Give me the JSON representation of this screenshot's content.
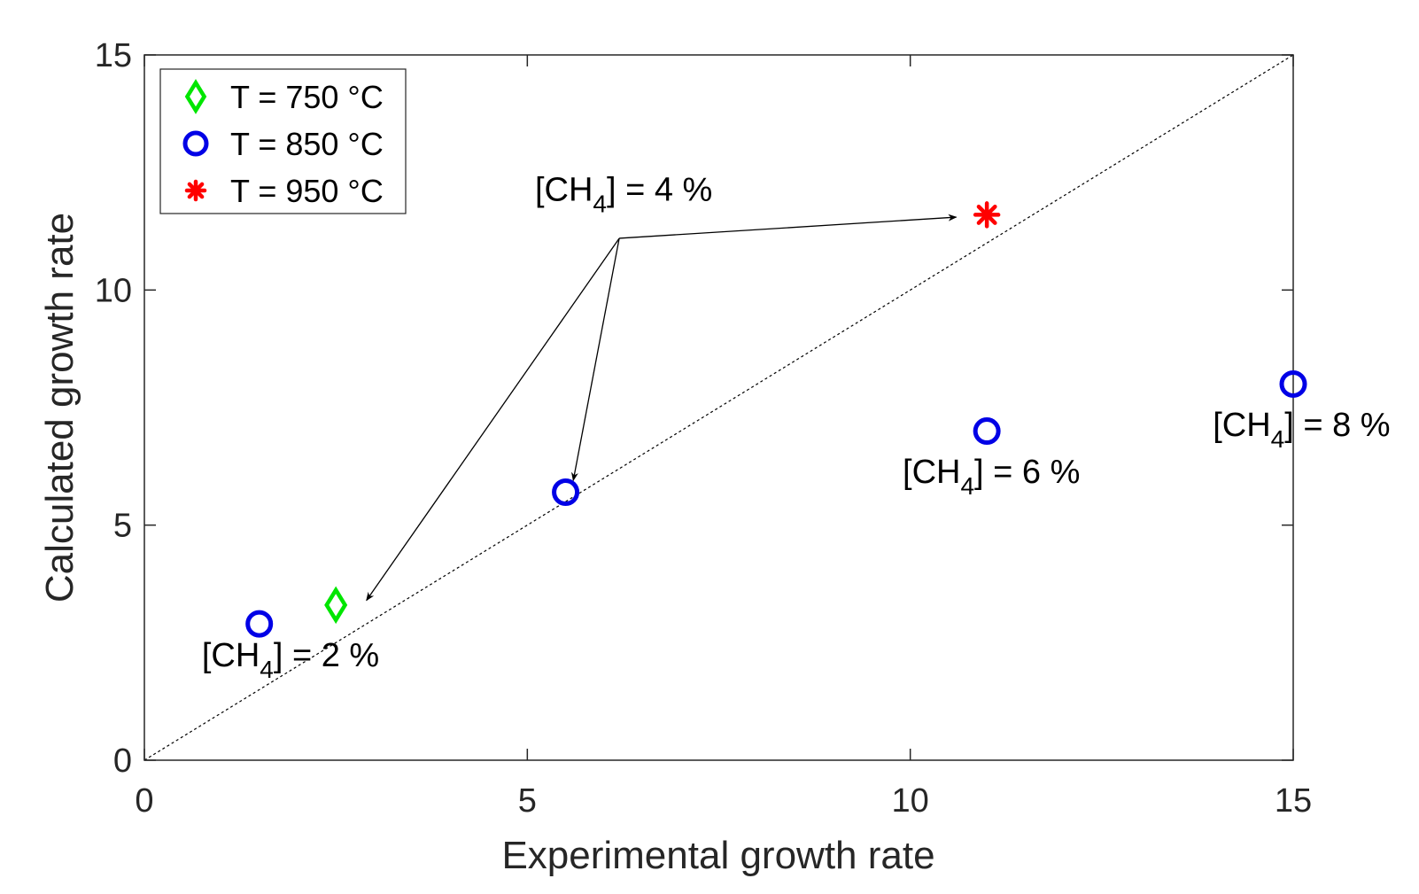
{
  "chart_data": {
    "type": "scatter",
    "xlabel": "Experimental growth rate",
    "ylabel": "Calculated growth rate",
    "xlim": [
      0,
      15
    ],
    "ylim": [
      0,
      15
    ],
    "xticks": [
      "0",
      "5",
      "10",
      "15"
    ],
    "yticks": [
      "0",
      "5",
      "10",
      "15"
    ],
    "grid": false,
    "legend_position": "top-left",
    "reference_line": {
      "style": "dotted",
      "from": [
        0,
        0
      ],
      "to": [
        15,
        15
      ]
    },
    "series": [
      {
        "name": "T = 750 °C",
        "marker": "diamond",
        "color": "#00e600",
        "points": [
          {
            "x": 2.5,
            "y": 3.3
          }
        ]
      },
      {
        "name": "T = 850 °C",
        "marker": "circle",
        "color": "#0000e6",
        "points": [
          {
            "x": 1.5,
            "y": 2.9
          },
          {
            "x": 5.5,
            "y": 5.7
          },
          {
            "x": 11.0,
            "y": 7.0
          },
          {
            "x": 15.0,
            "y": 8.0
          }
        ]
      },
      {
        "name": "T = 950 °C",
        "marker": "asterisk",
        "color": "#ff0000",
        "points": [
          {
            "x": 11.0,
            "y": 11.6
          }
        ]
      }
    ],
    "annotations": [
      {
        "pre": "[CH",
        "sub": "4",
        "post": "] = 4 %",
        "x": 5.1,
        "y": 11.9
      },
      {
        "pre": "[CH",
        "sub": "4",
        "post": "] = 2 %",
        "x": 0.75,
        "y": 2.0
      },
      {
        "pre": "[CH",
        "sub": "4",
        "post": "] = 6 %",
        "x": 9.9,
        "y": 5.9
      },
      {
        "pre": "[CH",
        "sub": "4",
        "post": "] = 8 %",
        "x": 13.95,
        "y": 6.9
      }
    ],
    "arrows": [
      {
        "from": [
          6.2,
          11.1
        ],
        "to": [
          10.6,
          11.55
        ]
      },
      {
        "from": [
          6.2,
          11.1
        ],
        "to": [
          5.6,
          5.95
        ]
      },
      {
        "from": [
          6.2,
          11.1
        ],
        "to": [
          2.9,
          3.4
        ]
      }
    ]
  }
}
